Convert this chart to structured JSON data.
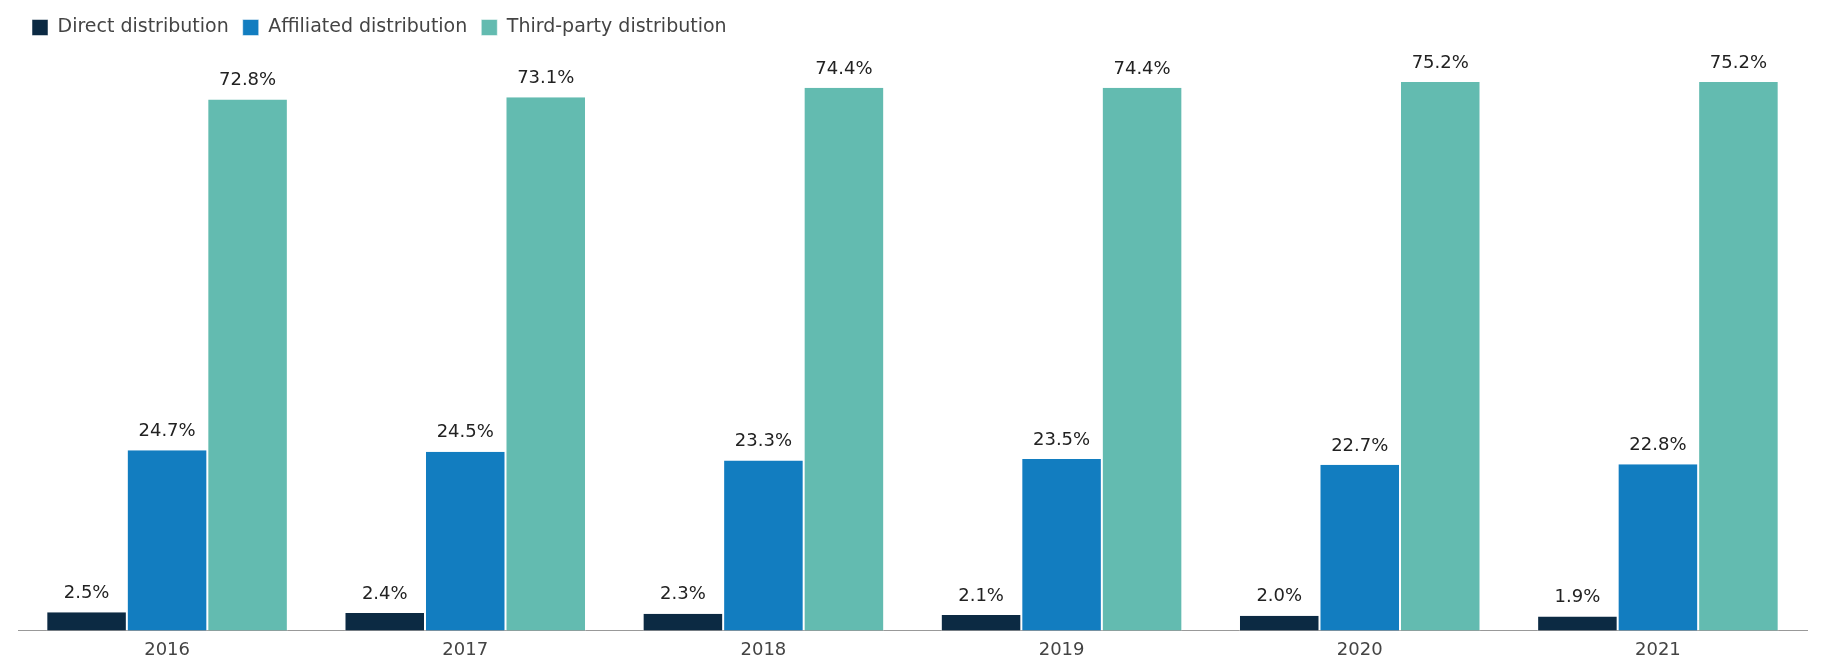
{
  "chart_data": {
    "type": "bar",
    "categories": [
      "2016",
      "2017",
      "2018",
      "2019",
      "2020",
      "2021"
    ],
    "legend": "top left",
    "grid": false,
    "series": [
      {
        "name": "Direct distribution",
        "color": "#0c2a43",
        "values": [
          2.5,
          2.4,
          2.3,
          2.1,
          2.0,
          1.9
        ],
        "value_labels": [
          "2.5%",
          "2.4%",
          "2.3%",
          "2.1%",
          "2.0%",
          "1.9%"
        ]
      },
      {
        "name": "Affiliated distribution",
        "color": "#127dc0",
        "values": [
          24.7,
          24.5,
          23.3,
          23.5,
          22.7,
          22.8
        ],
        "value_labels": [
          "24.7%",
          "24.5%",
          "23.3%",
          "23.5%",
          "22.7%",
          "22.8%"
        ]
      },
      {
        "name": "Third-party distribution",
        "color": "#63bbb0",
        "values": [
          72.8,
          73.1,
          74.4,
          74.4,
          75.2,
          75.2
        ],
        "value_labels": [
          "72.8%",
          "73.1%",
          "74.4%",
          "74.4%",
          "75.2%",
          "75.2%"
        ]
      }
    ]
  }
}
